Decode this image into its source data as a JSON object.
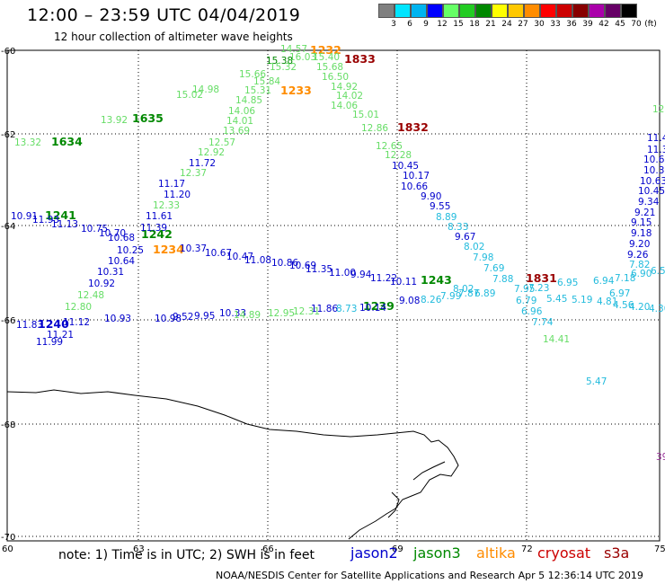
{
  "title": "12:00 – 23:59 UTC 04/04/2019",
  "subtitle": "12 hour collection of altimeter wave heights",
  "colorbar": {
    "unit": "(ft)",
    "ticks": [
      "3",
      "6",
      "9",
      "12",
      "15",
      "18",
      "21",
      "24",
      "27",
      "30",
      "33",
      "36",
      "39",
      "42",
      "45",
      "70"
    ],
    "colors": [
      "#808080",
      "#00e5ff",
      "#00b4f0",
      "#0000ff",
      "#66ff66",
      "#22cc22",
      "#008800",
      "#ffff00",
      "#ffc800",
      "#ff8c00",
      "#ff0000",
      "#cc0000",
      "#880000",
      "#aa00aa",
      "#660066",
      "#000000"
    ]
  },
  "axes": {
    "lat_labels": [
      "-60",
      "-62",
      "-64",
      "-66",
      "-68",
      "-70"
    ],
    "lon_labels": [
      "60",
      "63",
      "66",
      "69",
      "72",
      "75"
    ]
  },
  "satellite_colors": {
    "jason2": "#0000cc",
    "jason3": "#008800",
    "altika": "#ff8c00",
    "cryosat": "#cc0000",
    "s3a": "#990000",
    "light_green": "#66dd66",
    "cyan": "#22bbdd",
    "purple": "#993399"
  },
  "pass_times": [
    {
      "label": "1232",
      "sat": "altika"
    },
    {
      "label": "1833",
      "sat": "s3a"
    },
    {
      "label": "1233",
      "sat": "altika"
    },
    {
      "label": "1635",
      "sat": "jason3"
    },
    {
      "label": "1634",
      "sat": "jason3"
    },
    {
      "label": "1832",
      "sat": "s3a"
    },
    {
      "label": "1241",
      "sat": "jason3"
    },
    {
      "label": "1242",
      "sat": "jason3"
    },
    {
      "label": "1234",
      "sat": "altika"
    },
    {
      "label": "1243",
      "sat": "jason3"
    },
    {
      "label": "1831",
      "sat": "s3a"
    },
    {
      "label": "1240",
      "sat": "jason2"
    },
    {
      "label": "1239",
      "sat": "jason3"
    }
  ],
  "wave_heights": [
    {
      "v": "14.57",
      "c": "light_green"
    },
    {
      "v": "15.38",
      "c": "jason3"
    },
    {
      "v": "16.03",
      "c": "light_green"
    },
    {
      "v": "15.40",
      "c": "light_green"
    },
    {
      "v": "15.68",
      "c": "light_green"
    },
    {
      "v": "15.32",
      "c": "light_green"
    },
    {
      "v": "15.66",
      "c": "light_green"
    },
    {
      "v": "15.84",
      "c": "light_green"
    },
    {
      "v": "16.50",
      "c": "light_green"
    },
    {
      "v": "15.31",
      "c": "light_green"
    },
    {
      "v": "14.92",
      "c": "light_green"
    },
    {
      "v": "14.85",
      "c": "light_green"
    },
    {
      "v": "14.02",
      "c": "light_green"
    },
    {
      "v": "15.02",
      "c": "light_green"
    },
    {
      "v": "14.98",
      "c": "light_green"
    },
    {
      "v": "14.06",
      "c": "light_green"
    },
    {
      "v": "14.06",
      "c": "light_green"
    },
    {
      "v": "15.01",
      "c": "light_green"
    },
    {
      "v": "14.01",
      "c": "light_green"
    },
    {
      "v": "13.92",
      "c": "light_green"
    },
    {
      "v": "12.86",
      "c": "light_green"
    },
    {
      "v": "13.69",
      "c": "light_green"
    },
    {
      "v": "13.32",
      "c": "light_green"
    },
    {
      "v": "12.57",
      "c": "light_green"
    },
    {
      "v": "12.65",
      "c": "light_green"
    },
    {
      "v": "12.92",
      "c": "light_green"
    },
    {
      "v": "12.28",
      "c": "light_green"
    },
    {
      "v": "11.72",
      "c": "jason2"
    },
    {
      "v": "10.45",
      "c": "jason2"
    },
    {
      "v": "12.37",
      "c": "light_green"
    },
    {
      "v": "10.17",
      "c": "jason2"
    },
    {
      "v": "11.17",
      "c": "jason2"
    },
    {
      "v": "10.66",
      "c": "jason2"
    },
    {
      "v": "11.20",
      "c": "jason2"
    },
    {
      "v": "9.90",
      "c": "jason2"
    },
    {
      "v": "12.33",
      "c": "light_green"
    },
    {
      "v": "9.55",
      "c": "jason2"
    },
    {
      "v": "10.91",
      "c": "jason2"
    },
    {
      "v": "11.93",
      "c": "jason2"
    },
    {
      "v": "11.61",
      "c": "jason2"
    },
    {
      "v": "8.89",
      "c": "cyan"
    },
    {
      "v": "11.13",
      "c": "jason2"
    },
    {
      "v": "10.75",
      "c": "jason2"
    },
    {
      "v": "11.39",
      "c": "jason2"
    },
    {
      "v": "8.33",
      "c": "cyan"
    },
    {
      "v": "10.70",
      "c": "jason2"
    },
    {
      "v": "10.68",
      "c": "jason2"
    },
    {
      "v": "9.67",
      "c": "jason2"
    },
    {
      "v": "10.37",
      "c": "jason2"
    },
    {
      "v": "8.02",
      "c": "cyan"
    },
    {
      "v": "10.25",
      "c": "jason2"
    },
    {
      "v": "10.67",
      "c": "jason2"
    },
    {
      "v": "10.47",
      "c": "jason2"
    },
    {
      "v": "7.98",
      "c": "cyan"
    },
    {
      "v": "10.64",
      "c": "jason2"
    },
    {
      "v": "11.08",
      "c": "jason2"
    },
    {
      "v": "10.86",
      "c": "jason2"
    },
    {
      "v": "10.69",
      "c": "jason2"
    },
    {
      "v": "11.35",
      "c": "jason2"
    },
    {
      "v": "7.69",
      "c": "cyan"
    },
    {
      "v": "10.31",
      "c": "jason2"
    },
    {
      "v": "11.00",
      "c": "jason2"
    },
    {
      "v": "9.94",
      "c": "jason2"
    },
    {
      "v": "11.22",
      "c": "jason2"
    },
    {
      "v": "7.88",
      "c": "cyan"
    },
    {
      "v": "10.92",
      "c": "jason2"
    },
    {
      "v": "10.11",
      "c": "jason2"
    },
    {
      "v": "7.95",
      "c": "cyan"
    },
    {
      "v": "6.95",
      "c": "cyan"
    },
    {
      "v": "6.94",
      "c": "cyan"
    },
    {
      "v": "7.18",
      "c": "cyan"
    },
    {
      "v": "6.97",
      "c": "cyan"
    },
    {
      "v": "6.90",
      "c": "cyan"
    },
    {
      "v": "12.48",
      "c": "light_green"
    },
    {
      "v": "8.02",
      "c": "cyan"
    },
    {
      "v": "7.23",
      "c": "cyan"
    },
    {
      "v": "12.80",
      "c": "light_green"
    },
    {
      "v": "8.26",
      "c": "cyan"
    },
    {
      "v": "7.99",
      "c": "cyan"
    },
    {
      "v": "7.87",
      "c": "cyan"
    },
    {
      "v": "6.89",
      "c": "cyan"
    },
    {
      "v": "5.45",
      "c": "cyan"
    },
    {
      "v": "5.19",
      "c": "cyan"
    },
    {
      "v": "4.81",
      "c": "cyan"
    },
    {
      "v": "4.56",
      "c": "cyan"
    },
    {
      "v": "4.20",
      "c": "cyan"
    },
    {
      "v": "4.30",
      "c": "cyan"
    },
    {
      "v": "9.08",
      "c": "jason2"
    },
    {
      "v": "11.86",
      "c": "jason2"
    },
    {
      "v": "8.73",
      "c": "cyan"
    },
    {
      "v": "10.14",
      "c": "jason2"
    },
    {
      "v": "6.79",
      "c": "cyan"
    },
    {
      "v": "6.96",
      "c": "cyan"
    },
    {
      "v": "11.83",
      "c": "jason2"
    },
    {
      "v": "11.12",
      "c": "jason2"
    },
    {
      "v": "10.93",
      "c": "jason2"
    },
    {
      "v": "10.98",
      "c": "jason2"
    },
    {
      "v": "9.52",
      "c": "jason2"
    },
    {
      "v": "9.95",
      "c": "jason2"
    },
    {
      "v": "10.33",
      "c": "jason2"
    },
    {
      "v": "14.89",
      "c": "light_green"
    },
    {
      "v": "12.95",
      "c": "light_green"
    },
    {
      "v": "12.31",
      "c": "light_green"
    },
    {
      "v": "7.74",
      "c": "cyan"
    },
    {
      "v": "11.21",
      "c": "jason2"
    },
    {
      "v": "11.99",
      "c": "jason2"
    },
    {
      "v": "14.41",
      "c": "light_green"
    },
    {
      "v": "5.47",
      "c": "cyan"
    },
    {
      "v": "12",
      "c": "light_green"
    },
    {
      "v": "11.4",
      "c": "jason2"
    },
    {
      "v": "11.3",
      "c": "jason2"
    },
    {
      "v": "10.6",
      "c": "jason2"
    },
    {
      "v": "10.35",
      "c": "jason2"
    },
    {
      "v": "10.63",
      "c": "jason2"
    },
    {
      "v": "10.45",
      "c": "jason2"
    },
    {
      "v": "9.34",
      "c": "jason2"
    },
    {
      "v": "9.21",
      "c": "jason2"
    },
    {
      "v": "9.15",
      "c": "jason2"
    },
    {
      "v": "9.18",
      "c": "jason2"
    },
    {
      "v": "9.20",
      "c": "jason2"
    },
    {
      "v": "9.26",
      "c": "jason2"
    },
    {
      "v": "7.82",
      "c": "cyan"
    },
    {
      "v": "6.5",
      "c": "cyan"
    },
    {
      "v": "39",
      "c": "purple"
    }
  ],
  "note": "note: 1) Time is in UTC; 2) SWH is in feet",
  "legend": [
    {
      "label": "jason2",
      "color": "#0000cc"
    },
    {
      "label": "jason3",
      "color": "#008800"
    },
    {
      "label": "altika",
      "color": "#ff8c00"
    },
    {
      "label": "cryosat",
      "color": "#cc0000"
    },
    {
      "label": "s3a",
      "color": "#990000"
    }
  ],
  "footer": "NOAA/NESDIS Center for Satellite Applications and Research    Apr  5 12:36:14 UTC 2019"
}
